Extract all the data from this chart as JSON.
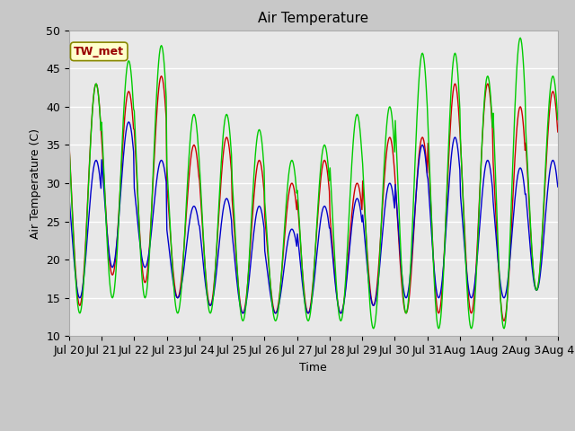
{
  "title": "Air Temperature",
  "ylabel": "Air Temperature (C)",
  "xlabel": "Time",
  "ylim": [
    10,
    50
  ],
  "fig_bg": "#c8c8c8",
  "plot_bg": "#e8e8e8",
  "annotation_text": "TW_met",
  "annotation_bg": "#ffffcc",
  "annotation_fg": "#990000",
  "series": {
    "PanelT": {
      "color": "#cc0000",
      "lw": 1.0
    },
    "AirT": {
      "color": "#0000cc",
      "lw": 1.0
    },
    "AM25T_PRT": {
      "color": "#00cc00",
      "lw": 1.0
    }
  },
  "grid_color": "white",
  "tick_labels": [
    "Jul 20",
    "Jul 21",
    "Jul 22",
    "Jul 23",
    "Jul 24",
    "Jul 25",
    "Jul 26",
    "Jul 27",
    "Jul 28",
    "Jul 29",
    "Jul 30",
    "Jul 31",
    "Aug 1",
    "Aug 2",
    "Aug 3",
    "Aug 4"
  ],
  "days": 15,
  "points_per_day": 48,
  "panel_peaks": [
    43,
    42,
    44,
    35,
    36,
    33,
    30,
    33,
    30,
    36,
    36,
    43,
    43,
    40,
    42
  ],
  "panel_troughs": [
    14,
    18,
    17,
    15,
    14,
    13,
    13,
    13,
    13,
    14,
    13,
    13,
    13,
    12,
    16
  ],
  "air_peaks": [
    33,
    38,
    33,
    27,
    28,
    27,
    24,
    27,
    28,
    30,
    35,
    36,
    33,
    32,
    33
  ],
  "air_troughs": [
    15,
    19,
    19,
    15,
    14,
    13,
    13,
    13,
    13,
    14,
    15,
    15,
    15,
    15,
    16
  ],
  "green_peaks": [
    43,
    46,
    48,
    39,
    39,
    37,
    33,
    35,
    39,
    40,
    47,
    47,
    44,
    49,
    44
  ],
  "green_troughs": [
    13,
    15,
    15,
    13,
    13,
    12,
    12,
    12,
    12,
    11,
    13,
    11,
    11,
    11,
    16
  ]
}
